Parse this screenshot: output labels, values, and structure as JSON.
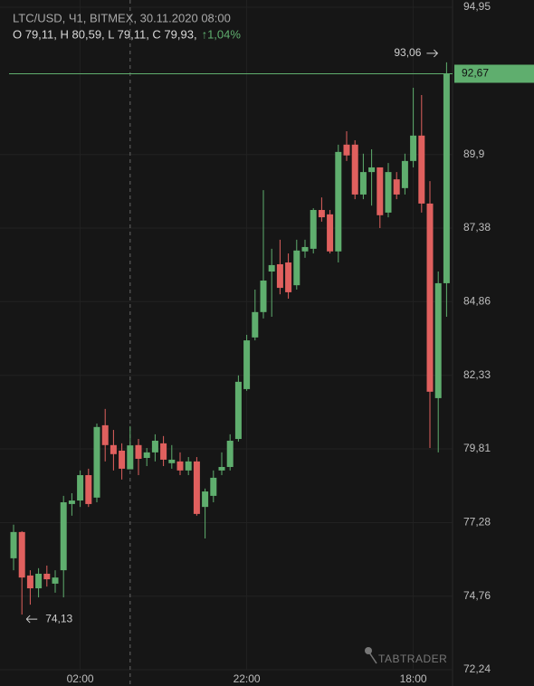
{
  "chart_data": {
    "type": "candlestick",
    "header": "LTC/USD, Ч1, BITMEX, 30.11.2020 08:00",
    "ohlc_label": "O 79,11, H 80,59, L 79,11, C 79,93,",
    "change_label": "↑1,04%",
    "watermark": "TABTRADER",
    "high_label": "93,06",
    "low_label": "74,13",
    "last_label": "92,67",
    "last_price": 92.67,
    "crosshair_index": 14,
    "up_color": "#5fae6e",
    "down_color": "#e0605e",
    "categories": [
      null,
      null,
      null,
      null,
      null,
      null,
      null,
      null,
      "02:00",
      null,
      null,
      null,
      null,
      null,
      null,
      null,
      null,
      null,
      null,
      null,
      null,
      null,
      null,
      null,
      null,
      null,
      null,
      null,
      "22:00",
      null,
      null,
      null,
      null,
      null,
      null,
      null,
      null,
      null,
      null,
      null,
      null,
      null,
      null,
      null,
      null,
      null,
      null,
      null,
      "18:00",
      null,
      null,
      null,
      null
    ],
    "open": [
      76.06,
      76.96,
      75.47,
      75.03,
      75.53,
      75.19,
      75.65,
      77.92,
      78.04,
      78.91,
      78.14,
      80.62,
      79.94,
      79.75,
      79.11,
      79.94,
      79.5,
      79.69,
      80.0,
      79.32,
      79.38,
      79.07,
      79.38,
      77.82,
      78.2,
      79.07,
      79.19,
      80.15,
      81.86,
      83.63,
      84.5,
      85.89,
      86.14,
      86.2,
      85.42,
      86.58,
      86.67,
      88.0,
      87.85,
      86.58,
      90.24,
      90.24,
      88.53,
      89.3,
      89.46,
      87.91,
      89.05,
      88.75,
      89.68,
      90.55,
      88.22,
      81.55,
      85.49
    ],
    "high": [
      77.21,
      76.99,
      75.65,
      75.72,
      75.81,
      75.65,
      78.2,
      78.29,
      79.07,
      79.13,
      80.68,
      81.18,
      80.46,
      80.0,
      80.59,
      80.15,
      79.84,
      80.31,
      80.25,
      79.94,
      79.69,
      79.53,
      79.53,
      78.45,
      79.07,
      79.69,
      80.31,
      82.33,
      83.72,
      85.27,
      88.68,
      86.67,
      86.98,
      86.51,
      86.98,
      86.98,
      88.06,
      88.43,
      88.0,
      90.24,
      90.7,
      90.39,
      89.93,
      90.08,
      89.46,
      89.61,
      89.3,
      89.93,
      92.19,
      91.94,
      88.99,
      85.89,
      93.06
    ],
    "low": [
      75.65,
      74.13,
      74.47,
      74.72,
      75.09,
      74.88,
      74.72,
      77.52,
      77.82,
      77.82,
      77.98,
      79.38,
      79.07,
      78.76,
      79.11,
      78.91,
      79.22,
      79.38,
      79.22,
      79.13,
      78.91,
      78.91,
      77.52,
      76.74,
      77.98,
      78.91,
      79.07,
      80.06,
      81.8,
      83.53,
      84.28,
      84.34,
      85.11,
      84.96,
      85.27,
      86.36,
      86.51,
      87.6,
      86.51,
      86.2,
      89.68,
      88.37,
      88.37,
      88.15,
      87.38,
      87.75,
      88.37,
      88.53,
      89.46,
      87.91,
      79.84,
      79.69,
      84.34
    ],
    "close": [
      76.96,
      75.4,
      75.03,
      75.53,
      75.34,
      75.4,
      77.98,
      78.04,
      78.91,
      77.92,
      80.56,
      79.94,
      79.63,
      79.13,
      79.93,
      79.47,
      79.69,
      80.09,
      79.44,
      79.44,
      79.07,
      79.38,
      77.58,
      78.35,
      78.82,
      79.19,
      80.09,
      82.11,
      83.53,
      84.5,
      85.58,
      86.11,
      85.33,
      85.18,
      86.61,
      86.73,
      88.0,
      87.75,
      86.58,
      89.99,
      89.87,
      88.53,
      89.3,
      89.46,
      87.82,
      89.3,
      88.53,
      89.68,
      90.55,
      88.22,
      81.77,
      85.49,
      92.67
    ],
    "ylim": [
      72.24,
      94.95
    ],
    "yticks": [
      {
        "value": 72.24,
        "label": "72,24"
      },
      {
        "value": 74.76,
        "label": "74,76"
      },
      {
        "value": 77.28,
        "label": "77,28"
      },
      {
        "value": 79.81,
        "label": "79,81"
      },
      {
        "value": 82.33,
        "label": "82,33"
      },
      {
        "value": 84.86,
        "label": "84,86"
      },
      {
        "value": 87.38,
        "label": "87,38"
      },
      {
        "value": 89.9,
        "label": "89,9"
      },
      {
        "value": 94.95,
        "label": "94,95"
      }
    ],
    "grid": true
  }
}
